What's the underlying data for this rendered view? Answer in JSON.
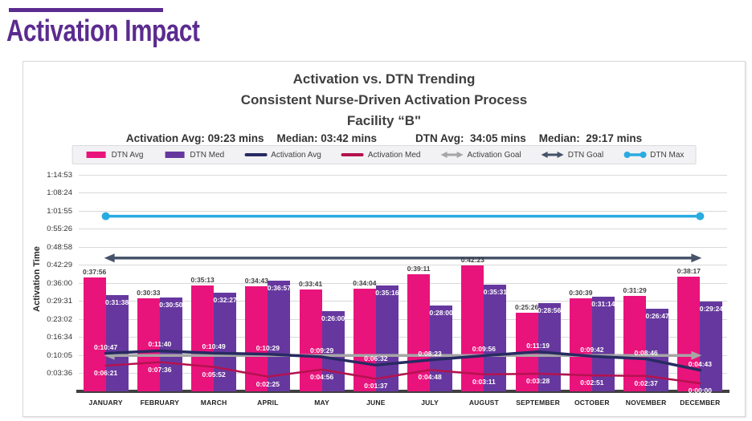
{
  "page": {
    "title": "Activation Impact"
  },
  "chart": {
    "title_lines": [
      "Activation vs. DTN Trending",
      "Consistent Nurse-Driven Activation Process",
      "Facility “B\""
    ],
    "stats": [
      "Activation Avg: 09:23 mins",
      "Median: 03:42 mins",
      "DTN Avg:  34:05 mins",
      "Median:  29:17 mins"
    ],
    "y_axis_title": "Activation Time",
    "legend": [
      {
        "label": "DTN Avg",
        "swatch": "bar",
        "color": "#E9137C"
      },
      {
        "label": "DTN Med",
        "swatch": "bar",
        "color": "#66389F"
      },
      {
        "label": "Activation Avg",
        "swatch": "line",
        "color": "#282A62"
      },
      {
        "label": "Activation Med",
        "swatch": "line",
        "color": "#B4124F"
      },
      {
        "label": "Activation Goal",
        "swatch": "double-arrow",
        "color": "#A6A6A6"
      },
      {
        "label": "DTN Goal",
        "swatch": "double-arrow",
        "color": "#47536B"
      },
      {
        "label": "DTN Max",
        "swatch": "dot-line",
        "color": "#29ABE2"
      }
    ]
  },
  "chart_data": {
    "type": "bar",
    "subtype": "combo bar + line, time values h:mm:ss",
    "title": "Activation vs. DTN Trending — Consistent Nurse-Driven Activation Process — Facility “B\"",
    "ylabel": "Activation Time",
    "grid": true,
    "ylim_seconds": [
      -173,
      4613
    ],
    "categories": [
      "JANUARY",
      "FEBRUARY",
      "MARCH",
      "APRIL",
      "MAY",
      "JUNE",
      "JULY",
      "AUGUST",
      "SEPTEMBER",
      "OCTOBER",
      "NOVEMBER",
      "DECEMBER"
    ],
    "y_ticks": [
      {
        "label": "1:14:53",
        "seconds": 4493
      },
      {
        "label": "1:08:24",
        "seconds": 4104
      },
      {
        "label": "1:01:55",
        "seconds": 3715
      },
      {
        "label": "0:55:26",
        "seconds": 3326
      },
      {
        "label": "0:48:58",
        "seconds": 2938
      },
      {
        "label": "0:42:29",
        "seconds": 2549
      },
      {
        "label": "0:36:00",
        "seconds": 2160
      },
      {
        "label": "0:29:31",
        "seconds": 1771
      },
      {
        "label": "0:23:02",
        "seconds": 1382
      },
      {
        "label": "0:16:34",
        "seconds": 994
      },
      {
        "label": "0:10:05",
        "seconds": 605
      },
      {
        "label": "0:03:36",
        "seconds": 216
      }
    ],
    "series": [
      {
        "name": "DTN Avg",
        "style": "bar",
        "color": "#E9137C",
        "label_position": "above-bar",
        "label_color": "#404040",
        "labels": [
          "0:37:56",
          "0:30:33",
          "0:35:13",
          "0:34:43",
          "0:33:41",
          "0:34:04",
          "0:39:11",
          "0:42:23",
          "0:25:26",
          "0:30:39",
          "0:31:29",
          "0:38:17"
        ],
        "seconds": [
          2276,
          1833,
          2113,
          2083,
          2021,
          2044,
          2351,
          2543,
          1526,
          1839,
          1889,
          2297
        ]
      },
      {
        "name": "DTN Med",
        "style": "bar",
        "color": "#66389F",
        "label_position": "inside-bar",
        "label_color": "#FFFFFF",
        "labels": [
          "0:31:38",
          "0:30:50",
          "0:32:27",
          "0:36:57",
          "0:26:00",
          "0:35:16",
          "0:28:00",
          "0:35:31",
          "0:28:56",
          "0:31:14",
          "0:26:47",
          "0:29:24"
        ],
        "seconds": [
          1898,
          1850,
          1947,
          2217,
          1560,
          2116,
          1680,
          2131,
          1736,
          1874,
          1607,
          1764
        ]
      },
      {
        "name": "Activation Avg",
        "style": "line",
        "color": "#282A62",
        "width": 3.5,
        "label_position": "above-point",
        "label_color": "#FFFFFF",
        "labels": [
          "0:10:47",
          "0:11:40",
          "0:10:49",
          "0:10:29",
          "0:09:29",
          "0:06:32",
          "0:08:23",
          "0:09:56",
          "0:11:19",
          "0:09:42",
          "0:08:46",
          "0:04:43"
        ],
        "seconds": [
          647,
          700,
          649,
          629,
          569,
          392,
          503,
          596,
          679,
          582,
          526,
          283
        ]
      },
      {
        "name": "Activation Med",
        "style": "line",
        "color": "#B4124F",
        "width": 2.5,
        "label_position": "below-point",
        "label_color": "#FFFFFF",
        "labels": [
          "0:06:21",
          "0:07:36",
          "0:05:52",
          "0:02:25",
          "0:04:56",
          "0:01:37",
          "0:04:48",
          "0:03:11",
          "0:03:28",
          "0:02:51",
          "0:02:37",
          "0:00:00"
        ],
        "seconds": [
          381,
          456,
          352,
          145,
          296,
          97,
          288,
          191,
          208,
          171,
          157,
          0
        ]
      }
    ],
    "reference_lines": [
      {
        "name": "Activation Goal",
        "style": "double-arrow",
        "color": "#A6A6A6",
        "seconds": 600,
        "width": 3.5
      },
      {
        "name": "DTN Goal",
        "style": "double-arrow",
        "color": "#47536B",
        "seconds": 2700,
        "width": 3.5
      },
      {
        "name": "DTN Max",
        "style": "line-end-dots",
        "color": "#29ABE2",
        "seconds": 3600,
        "width": 3.5
      }
    ]
  }
}
